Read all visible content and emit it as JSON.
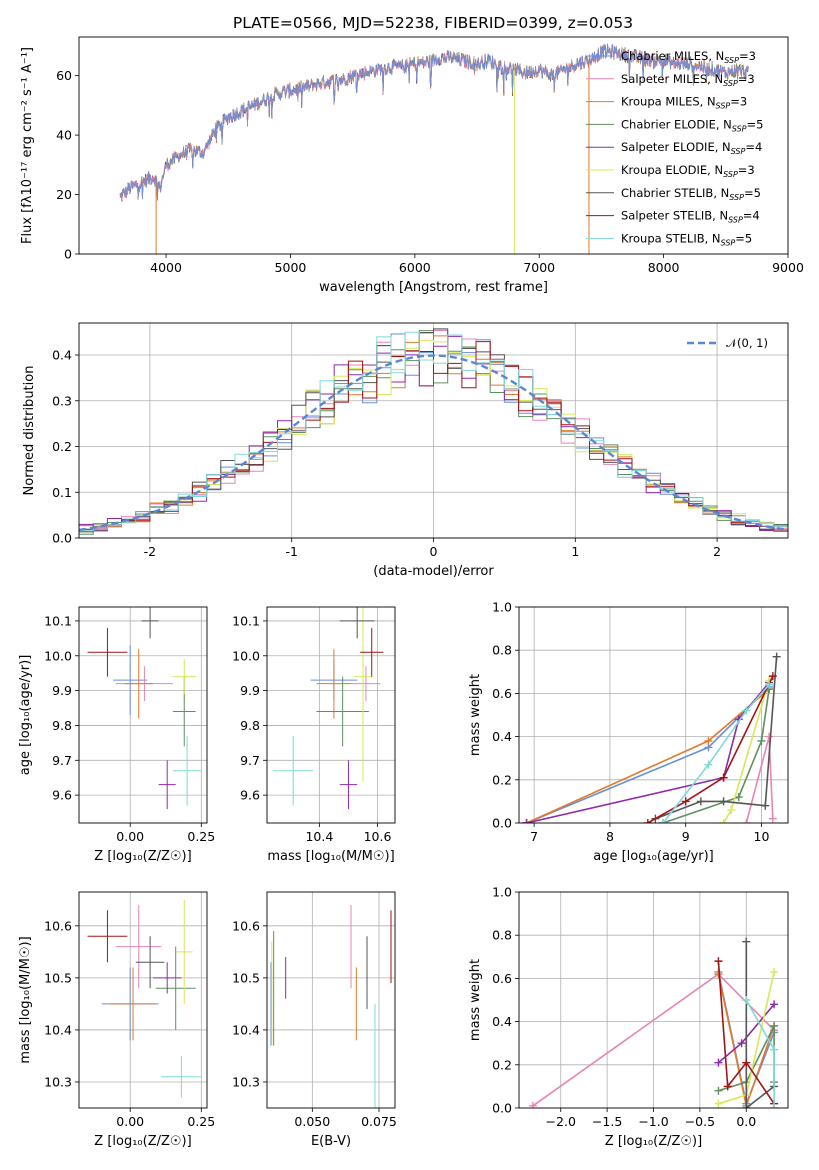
{
  "figure_title": "PLATE=0566, MJD=52238, FIBERID=0399, z=0.053",
  "colors": {
    "chabrier_miles": "#6a8fd8",
    "salpeter_miles": "#e884b6",
    "kroupa_miles": "#e07b2a",
    "chabrier_elodie": "#5f8f5f",
    "salpeter_elodie": "#8e2aa8",
    "kroupa_elodie": "#d7e85a",
    "chabrier_stelib": "#555555",
    "salpeter_stelib": "#a01515",
    "kroupa_stelib": "#7fd8d8",
    "normal_curve": "#5b86d6"
  },
  "chart_data": [
    {
      "id": "spectrum",
      "type": "line",
      "xlabel": "wavelength [Angstrom, rest frame]",
      "ylabel": "Flux [fλ10⁻¹⁷ erg cm⁻² s⁻¹ A⁻¹]",
      "xlim": [
        3300,
        9000
      ],
      "ylim": [
        0,
        73
      ],
      "xticks": [
        4000,
        5000,
        6000,
        7000,
        8000,
        9000
      ],
      "yticks": [
        0,
        20,
        40,
        60
      ],
      "legend_position": "right",
      "legend": [
        "Chabrier MILES, N_SSP=3",
        "Salpeter MILES, N_SSP=3",
        "Kroupa MILES, N_SSP=3",
        "Chabrier ELODIE, N_SSP=5",
        "Salpeter ELODIE, N_SSP=4",
        "Kroupa ELODIE, N_SSP=3",
        "Chabrier STELIB, N_SSP=5",
        "Salpeter STELIB, N_SSP=4",
        "Kroupa STELIB, N_SSP=5"
      ],
      "continuum": [
        [
          3630,
          19
        ],
        [
          3700,
          22
        ],
        [
          3800,
          24
        ],
        [
          3900,
          26
        ],
        [
          3950,
          22
        ],
        [
          4000,
          30
        ],
        [
          4100,
          33
        ],
        [
          4200,
          35
        ],
        [
          4300,
          34
        ],
        [
          4400,
          42
        ],
        [
          4500,
          46
        ],
        [
          4600,
          48
        ],
        [
          4700,
          50
        ],
        [
          4800,
          52
        ],
        [
          4900,
          54
        ],
        [
          5000,
          55
        ],
        [
          5100,
          56
        ],
        [
          5200,
          57
        ],
        [
          5300,
          58
        ],
        [
          5400,
          58.5
        ],
        [
          5500,
          60
        ],
        [
          5600,
          61
        ],
        [
          5700,
          62
        ],
        [
          5800,
          63
        ],
        [
          5900,
          63
        ],
        [
          6000,
          64
        ],
        [
          6100,
          64.5
        ],
        [
          6200,
          66
        ],
        [
          6300,
          66
        ],
        [
          6400,
          65
        ],
        [
          6500,
          64
        ],
        [
          6600,
          65
        ],
        [
          6700,
          63
        ],
        [
          6800,
          62
        ],
        [
          6900,
          61
        ],
        [
          7000,
          62
        ],
        [
          7100,
          60
        ],
        [
          7200,
          62
        ],
        [
          7300,
          64
        ],
        [
          7400,
          65
        ],
        [
          7500,
          68
        ],
        [
          7600,
          68
        ],
        [
          7700,
          67
        ],
        [
          7800,
          66
        ],
        [
          7900,
          65
        ],
        [
          8000,
          65
        ],
        [
          8100,
          64
        ],
        [
          8200,
          64
        ],
        [
          8300,
          63
        ],
        [
          8400,
          62
        ],
        [
          8500,
          61
        ],
        [
          8600,
          62
        ],
        [
          8680,
          61
        ]
      ],
      "dropouts": [
        [
          3920,
          0
        ],
        [
          6800,
          0
        ],
        [
          7400,
          0
        ]
      ]
    },
    {
      "id": "residuals",
      "type": "histogram",
      "xlabel": "(data-model)/error",
      "ylabel": "Normed distribution",
      "xlim": [
        -2.5,
        2.5
      ],
      "ylim": [
        0,
        0.47
      ],
      "xticks": [
        -2,
        -1,
        0,
        1,
        2
      ],
      "yticks": [
        0.0,
        0.1,
        0.2,
        0.3,
        0.4
      ],
      "bin_width": 0.1,
      "curve_label": "𝒩(0, 1)",
      "legend_position": "top-right"
    },
    {
      "id": "age_vs_z",
      "type": "scatter",
      "xlabel": "Z [log₁₀(Z/Z☉)]",
      "ylabel": "age  [log₁₀(age/yr)]",
      "xlim": [
        -0.18,
        0.27
      ],
      "ylim": [
        9.52,
        10.14
      ],
      "xticks": [
        0.0,
        0.25
      ],
      "xtick_labels": [
        "0.00",
        "0.25"
      ],
      "yticks": [
        9.6,
        9.7,
        9.8,
        9.9,
        10.0,
        10.1
      ],
      "points": [
        {
          "x": 0.0,
          "xerr": 0.06,
          "y": 9.93,
          "yerr": 0.1
        },
        {
          "x": 0.05,
          "xerr": 0.1,
          "y": 9.92,
          "yerr": 0.05
        },
        {
          "x": 0.03,
          "xerr": 0.05,
          "y": 9.92,
          "yerr": 0.1
        },
        {
          "x": 0.19,
          "xerr": 0.04,
          "y": 9.84,
          "yerr": 0.1
        },
        {
          "x": 0.13,
          "xerr": 0.03,
          "y": 9.63,
          "yerr": 0.07
        },
        {
          "x": 0.19,
          "xerr": 0.04,
          "y": 9.94,
          "yerr": 0.05
        },
        {
          "x": 0.07,
          "xerr": 0.03,
          "y": 10.1,
          "yerr": 0.05
        },
        {
          "x": -0.08,
          "xerr": 0.07,
          "y": 10.01,
          "yerr": 0.07
        },
        {
          "x": 0.2,
          "xerr": 0.05,
          "y": 9.67,
          "yerr": 0.1
        }
      ]
    },
    {
      "id": "age_vs_mass",
      "type": "scatter",
      "xlabel": "mass [log₁₀(M/M☉)]",
      "ylabel": "",
      "xlim": [
        10.22,
        10.66
      ],
      "ylim": [
        9.52,
        10.14
      ],
      "xticks": [
        10.4,
        10.6
      ],
      "yticks": [
        9.6,
        9.7,
        9.8,
        9.9,
        10.0,
        10.1
      ],
      "points": [
        {
          "x": 10.45,
          "xerr": 0.08,
          "y": 9.93,
          "yerr": 0.06
        },
        {
          "x": 10.56,
          "xerr": 0.05,
          "y": 9.92,
          "yerr": 0.05
        },
        {
          "x": 10.45,
          "xerr": 0.06,
          "y": 9.92,
          "yerr": 0.1
        },
        {
          "x": 10.48,
          "xerr": 0.09,
          "y": 9.84,
          "yerr": 0.1
        },
        {
          "x": 10.5,
          "xerr": 0.03,
          "y": 9.63,
          "yerr": 0.07
        },
        {
          "x": 10.55,
          "xerr": 0.03,
          "y": 9.94,
          "yerr": 0.3
        },
        {
          "x": 10.53,
          "xerr": 0.06,
          "y": 10.1,
          "yerr": 0.05
        },
        {
          "x": 10.58,
          "xerr": 0.04,
          "y": 10.01,
          "yerr": 0.07
        },
        {
          "x": 10.31,
          "xerr": 0.07,
          "y": 9.67,
          "yerr": 0.1
        }
      ]
    },
    {
      "id": "mass_weight_vs_age",
      "type": "line",
      "xlabel": "age  [log₁₀(age/yr)]",
      "ylabel": "mass weight",
      "xlim": [
        6.8,
        10.35
      ],
      "ylim": [
        0,
        1
      ],
      "xticks": [
        7,
        8,
        9,
        10
      ],
      "yticks": [
        0.0,
        0.2,
        0.4,
        0.6,
        0.8,
        1.0
      ],
      "series": [
        {
          "x": [
            6.9,
            9.3,
            10.1
          ],
          "y": [
            0.0,
            0.35,
            0.63
          ]
        },
        {
          "x": [
            9.8,
            10.1,
            10.15
          ],
          "y": [
            0.0,
            0.4,
            0.02
          ]
        },
        {
          "x": [
            6.9,
            9.3,
            10.1
          ],
          "y": [
            0.0,
            0.38,
            0.62
          ]
        },
        {
          "x": [
            8.7,
            9.7,
            10.0,
            10.1
          ],
          "y": [
            0.0,
            0.12,
            0.38,
            0.62
          ]
        },
        {
          "x": [
            6.9,
            9.5,
            9.7,
            10.1
          ],
          "y": [
            0.0,
            0.21,
            0.48,
            0.65
          ]
        },
        {
          "x": [
            9.5,
            9.6,
            10.1
          ],
          "y": [
            0.0,
            0.06,
            0.66
          ]
        },
        {
          "x": [
            8.6,
            9.2,
            9.5,
            10.05,
            10.2
          ],
          "y": [
            0.02,
            0.1,
            0.1,
            0.08,
            0.77
          ]
        },
        {
          "x": [
            8.5,
            9.0,
            9.5,
            10.15
          ],
          "y": [
            0.0,
            0.1,
            0.21,
            0.68
          ]
        },
        {
          "x": [
            8.7,
            9.3,
            9.8,
            10.1
          ],
          "y": [
            0.0,
            0.27,
            0.52,
            0.64
          ]
        }
      ]
    },
    {
      "id": "mass_vs_z",
      "type": "scatter",
      "xlabel": "Z [log₁₀(Z/Z☉)]",
      "ylabel": "mass [log₁₀(M/M☉)]",
      "xlim": [
        -0.18,
        0.27
      ],
      "ylim": [
        10.25,
        10.665
      ],
      "xticks": [
        0.0,
        0.25
      ],
      "xtick_labels": [
        "0.00",
        "0.25"
      ],
      "yticks": [
        10.3,
        10.4,
        10.5,
        10.6
      ],
      "points": [
        {
          "x": 0.0,
          "xerr": 0.1,
          "y": 10.45,
          "yerr": 0.07
        },
        {
          "x": 0.03,
          "xerr": 0.08,
          "y": 10.56,
          "yerr": 0.08
        },
        {
          "x": 0.01,
          "xerr": 0.08,
          "y": 10.45,
          "yerr": 0.07
        },
        {
          "x": 0.16,
          "xerr": 0.07,
          "y": 10.48,
          "yerr": 0.08
        },
        {
          "x": 0.13,
          "xerr": 0.05,
          "y": 10.5,
          "yerr": 0.03
        },
        {
          "x": 0.19,
          "xerr": 0.03,
          "y": 10.55,
          "yerr": 0.1
        },
        {
          "x": 0.07,
          "xerr": 0.05,
          "y": 10.53,
          "yerr": 0.05
        },
        {
          "x": -0.08,
          "xerr": 0.07,
          "y": 10.58,
          "yerr": 0.05
        },
        {
          "x": 0.18,
          "xerr": 0.07,
          "y": 10.31,
          "yerr": 0.04
        }
      ]
    },
    {
      "id": "mass_vs_ebv",
      "type": "scatter",
      "xlabel": "E(B-V)",
      "ylabel": "",
      "xlim": [
        0.033,
        0.081
      ],
      "ylim": [
        10.25,
        10.665
      ],
      "xticks": [
        0.05,
        0.075
      ],
      "xtick_labels": [
        "0.050",
        "0.075"
      ],
      "yticks": [
        10.3,
        10.4,
        10.5,
        10.6
      ],
      "points": [
        {
          "x": 0.0345,
          "xerr": 0,
          "y": 10.45,
          "yerr": 0.08
        },
        {
          "x": 0.0645,
          "xerr": 0,
          "y": 10.56,
          "yerr": 0.08
        },
        {
          "x": 0.0665,
          "xerr": 0,
          "y": 10.45,
          "yerr": 0.07
        },
        {
          "x": 0.0355,
          "xerr": 0,
          "y": 10.48,
          "yerr": 0.11
        },
        {
          "x": 0.04,
          "xerr": 0,
          "y": 10.5,
          "yerr": 0.04
        },
        {
          "x": 0.0348,
          "xerr": 0,
          "y": 10.47,
          "yerr": 0.1
        },
        {
          "x": 0.0705,
          "xerr": 0,
          "y": 10.51,
          "yerr": 0.07
        },
        {
          "x": 0.0795,
          "xerr": 0,
          "y": 10.56,
          "yerr": 0.07
        },
        {
          "x": 0.0735,
          "xerr": 0,
          "y": 10.35,
          "yerr": 0.1
        }
      ]
    },
    {
      "id": "mass_weight_vs_z",
      "type": "line",
      "xlabel": "Z [log₁₀(Z/Z☉)]",
      "ylabel": "mass weight",
      "xlim": [
        -2.45,
        0.45
      ],
      "ylim": [
        0,
        1
      ],
      "xticks": [
        -2.0,
        -1.5,
        -1.0,
        -0.5,
        0.0
      ],
      "xtick_labels": [
        "−2.0",
        "−1.5",
        "−1.0",
        "−0.5",
        "0.0"
      ],
      "yticks": [
        0.0,
        0.2,
        0.4,
        0.6,
        0.8,
        1.0
      ],
      "series": [
        {
          "x": [
            -0.3,
            0.0,
            0.3
          ],
          "y": [
            0.63,
            0.02,
            0.35
          ]
        },
        {
          "x": [
            -2.3,
            -0.3,
            0.3
          ],
          "y": [
            0.01,
            0.62,
            0.36
          ]
        },
        {
          "x": [
            -0.3,
            0.0,
            0.3
          ],
          "y": [
            0.62,
            0.01,
            0.38
          ]
        },
        {
          "x": [
            -0.3,
            0.0,
            0.3,
            0.3
          ],
          "y": [
            0.08,
            0.12,
            0.38,
            0.12
          ]
        },
        {
          "x": [
            -0.3,
            -0.05,
            0.3
          ],
          "y": [
            0.21,
            0.3,
            0.48
          ]
        },
        {
          "x": [
            -0.3,
            0.0,
            0.3
          ],
          "y": [
            0.02,
            0.06,
            0.63
          ]
        },
        {
          "x": [
            0.0,
            0.0,
            0.3
          ],
          "y": [
            0.77,
            0.0,
            0.1
          ]
        },
        {
          "x": [
            -0.3,
            -0.2,
            0.0,
            0.3
          ],
          "y": [
            0.68,
            0.1,
            0.21,
            0.02
          ]
        },
        {
          "x": [
            0.0,
            0.3,
            0.3
          ],
          "y": [
            0.5,
            0.27,
            0.0
          ]
        }
      ]
    }
  ]
}
